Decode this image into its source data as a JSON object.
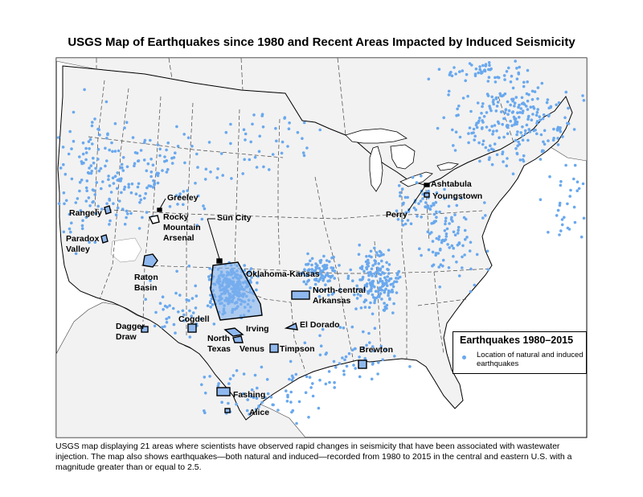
{
  "title": "USGS Map of Earthquakes since 1980 and Recent Areas Impacted by Induced Seismicity",
  "caption": "USGS map displaying 21 areas where scientists have observed rapid changes in seismicity that have been associated with wastewater injection. The map also shows earthquakes—both natural and induced—recorded from 1980 to 2015 in the central and eastern U.S. with a magnitude greater than or equal to 2.5.",
  "legend": {
    "title": "Earthquakes 1980–2015",
    "entry": "Location of natural and induced earthquakes"
  },
  "colors": {
    "earthquake": "#69a8ee",
    "land": "#f2f2f2",
    "outline": "#000000"
  },
  "areas": [
    {
      "id": "greeley",
      "label": "Greeley"
    },
    {
      "id": "rangely",
      "label": "Rangely"
    },
    {
      "id": "rocky-mountain-arsenal",
      "label": "Rocky Mountain Arsenal"
    },
    {
      "id": "paradox-valley",
      "label": "Paradox Valley"
    },
    {
      "id": "raton-basin",
      "label": "Raton Basin"
    },
    {
      "id": "sun-city",
      "label": "Sun City"
    },
    {
      "id": "oklahoma-kansas",
      "label": "Oklahoma-Kansas"
    },
    {
      "id": "north-central-arkansas",
      "label": "North-central Arkansas"
    },
    {
      "id": "ashtabula",
      "label": "Ashtabula"
    },
    {
      "id": "youngstown",
      "label": "Youngstown"
    },
    {
      "id": "perry",
      "label": "Perry"
    },
    {
      "id": "dagger-draw",
      "label": "Dagger Draw"
    },
    {
      "id": "cogdell",
      "label": "Cogdell"
    },
    {
      "id": "irving",
      "label": "Irving"
    },
    {
      "id": "north-texas",
      "label": "North Texas"
    },
    {
      "id": "venus",
      "label": "Venus"
    },
    {
      "id": "timpson",
      "label": "Timpson"
    },
    {
      "id": "el-dorado",
      "label": "El Dorado"
    },
    {
      "id": "brewton",
      "label": "Brewton"
    },
    {
      "id": "fashing",
      "label": "Fashing"
    },
    {
      "id": "alice",
      "label": "Alice"
    }
  ]
}
